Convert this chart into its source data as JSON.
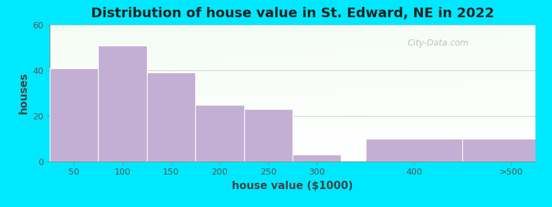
{
  "title": "Distribution of house value in St. Edward, NE in 2022",
  "xlabel": "house value ($1000)",
  "ylabel": "houses",
  "bar_lefts": [
    25,
    75,
    125,
    175,
    225,
    275,
    350,
    450
  ],
  "bar_widths": [
    50,
    50,
    50,
    50,
    50,
    50,
    100,
    100
  ],
  "bar_heights": [
    41,
    51,
    39,
    25,
    23,
    3,
    10,
    10
  ],
  "bar_color": "#c4afd4",
  "bar_edge_color": "#ffffff",
  "xtick_positions": [
    50,
    100,
    150,
    200,
    250,
    300,
    400,
    500
  ],
  "xtick_labels": [
    "50",
    "100",
    "150",
    "200",
    "250",
    "300",
    "400",
    ">500"
  ],
  "xlim": [
    25,
    525
  ],
  "ylim": [
    0,
    60
  ],
  "yticks": [
    0,
    20,
    40,
    60
  ],
  "background_outer": "#00e8ff",
  "grad_top_left": "#e8f5e8",
  "grad_bottom_right": "#ffffff",
  "title_fontsize": 14,
  "axis_label_fontsize": 11,
  "tick_fontsize": 9,
  "title_color": "#222222",
  "axis_label_color": "#444444",
  "watermark_text": "City-Data.com"
}
